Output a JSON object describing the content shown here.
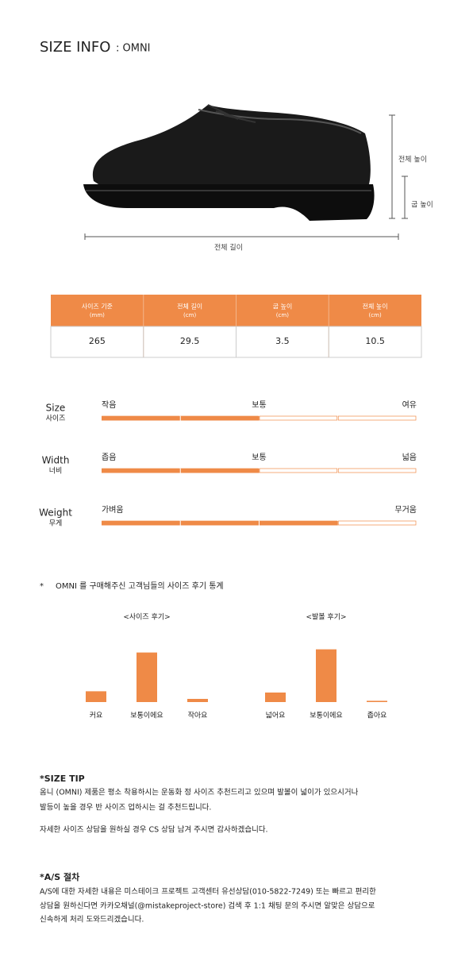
{
  "header": {
    "title": "SIZE INFO",
    "subtitle": ": OMNI"
  },
  "dimensions": {
    "total_height": "전체 높이",
    "heel_height": "굽 높이",
    "total_length": "전체 길이"
  },
  "table": {
    "headers": [
      {
        "label": "사이즈 기준",
        "unit": "(mm)"
      },
      {
        "label": "전체 길이",
        "unit": "(cm)"
      },
      {
        "label": "굽 높이",
        "unit": "(cm)"
      },
      {
        "label": "전체 높이",
        "unit": "(cm)"
      }
    ],
    "rows": [
      [
        "265",
        "29.5",
        "3.5",
        "10.5"
      ]
    ]
  },
  "fit": {
    "items": [
      {
        "label_en": "Size",
        "label_ko": "사이즈",
        "min": "작음",
        "mid": "보통",
        "max": "여유",
        "value": 2,
        "segments": 4
      },
      {
        "label_en": "Width",
        "label_ko": "너비",
        "min": "좁음",
        "mid": "보통",
        "max": "넓음",
        "value": 2,
        "segments": 4
      },
      {
        "label_en": "Weight",
        "label_ko": "무게",
        "min": "가벼움",
        "max": "무거움",
        "value": 3,
        "segments": 4
      }
    ]
  },
  "review_note": {
    "mark": "*",
    "text": "OMNI 를 구매해주신 고객님들의 사이즈 후기 통계"
  },
  "chart_data": [
    {
      "type": "bar",
      "title": "<사이즈 후기>",
      "categories": [
        "커요",
        "보통이에요",
        "작아요"
      ],
      "values": [
        17,
        78,
        5
      ],
      "color": "#ef8a47"
    },
    {
      "type": "bar",
      "title": "<발볼 후기>",
      "categories": [
        "넓어요",
        "보통이에요",
        "좁아요"
      ],
      "values": [
        15,
        83,
        2
      ],
      "color": "#ef8a47"
    }
  ],
  "size_tip": {
    "title": "*SIZE TIP",
    "lines": [
      "옴니 (OMNI) 제품은 평소 착용하시는 운동화 정 사이즈 추천드리고 있으며 발볼이 넓이가 있으시거나",
      "발등이 높을 경우 반 사이즈 업하시는 걸 추천드립니다.",
      "자세한 사이즈 상담을 원하실 경우 CS 상담 남겨 주시면 감사하겠습니다."
    ]
  },
  "as": {
    "title": "*A/S 절차",
    "lines": [
      "A/S에 대한 자세한 내용은 미스테이크 프로젝트 고객센터 유선상담(010-5822-7249) 또는 빠르고 편리한",
      "상담을 원하신다면 카카오채널(@mistakeproject-store) 검색 후 1:1 채팅 문의 주시면 알맞은 상담으로",
      "신속하게 처리 도와드리겠습니다."
    ]
  }
}
